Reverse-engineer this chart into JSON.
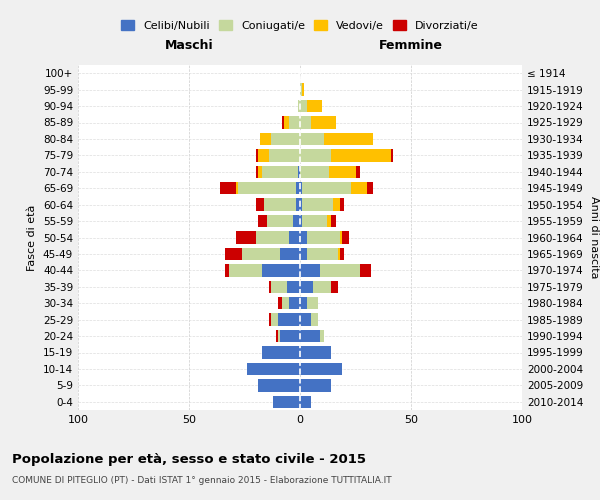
{
  "age_groups": [
    "0-4",
    "5-9",
    "10-14",
    "15-19",
    "20-24",
    "25-29",
    "30-34",
    "35-39",
    "40-44",
    "45-49",
    "50-54",
    "55-59",
    "60-64",
    "65-69",
    "70-74",
    "75-79",
    "80-84",
    "85-89",
    "90-94",
    "95-99",
    "100+"
  ],
  "birth_years": [
    "2010-2014",
    "2005-2009",
    "2000-2004",
    "1995-1999",
    "1990-1994",
    "1985-1989",
    "1980-1984",
    "1975-1979",
    "1970-1974",
    "1965-1969",
    "1960-1964",
    "1955-1959",
    "1950-1954",
    "1945-1949",
    "1940-1944",
    "1935-1939",
    "1930-1934",
    "1925-1929",
    "1920-1924",
    "1915-1919",
    "≤ 1914"
  ],
  "male": {
    "celibi": [
      12,
      19,
      24,
      17,
      9,
      10,
      5,
      6,
      17,
      9,
      5,
      3,
      2,
      2,
      1,
      0,
      0,
      0,
      0,
      0,
      0
    ],
    "coniugati": [
      0,
      0,
      0,
      0,
      1,
      3,
      3,
      7,
      15,
      17,
      15,
      12,
      14,
      26,
      16,
      14,
      13,
      5,
      1,
      0,
      0
    ],
    "vedovi": [
      0,
      0,
      0,
      0,
      0,
      0,
      0,
      0,
      0,
      0,
      0,
      0,
      0,
      1,
      2,
      5,
      5,
      2,
      0,
      0,
      0
    ],
    "divorziati": [
      0,
      0,
      0,
      0,
      1,
      1,
      2,
      1,
      2,
      8,
      9,
      4,
      4,
      7,
      1,
      1,
      0,
      1,
      0,
      0,
      0
    ]
  },
  "female": {
    "nubili": [
      5,
      14,
      19,
      14,
      9,
      5,
      3,
      6,
      9,
      3,
      3,
      1,
      1,
      1,
      0,
      0,
      0,
      0,
      0,
      0,
      0
    ],
    "coniugate": [
      0,
      0,
      0,
      0,
      2,
      3,
      5,
      8,
      18,
      14,
      15,
      11,
      14,
      22,
      13,
      14,
      11,
      5,
      3,
      1,
      0
    ],
    "vedove": [
      0,
      0,
      0,
      0,
      0,
      0,
      0,
      0,
      0,
      1,
      1,
      2,
      3,
      7,
      12,
      27,
      22,
      11,
      7,
      1,
      0
    ],
    "divorziate": [
      0,
      0,
      0,
      0,
      0,
      0,
      0,
      3,
      5,
      2,
      3,
      2,
      2,
      3,
      2,
      1,
      0,
      0,
      0,
      0,
      0
    ]
  },
  "colors": {
    "celibi": "#4472c4",
    "coniugati": "#c5d89d",
    "vedovi": "#ffc000",
    "divorziati": "#cc0000"
  },
  "title": "Popolazione per età, sesso e stato civile - 2015",
  "subtitle": "COMUNE DI PITEGLIO (PT) - Dati ISTAT 1° gennaio 2015 - Elaborazione TUTTITALIA.IT",
  "xlabel_left": "Maschi",
  "xlabel_right": "Femmine",
  "ylabel_left": "Fasce di età",
  "ylabel_right": "Anni di nascita",
  "xlim": 100,
  "legend_labels": [
    "Celibi/Nubili",
    "Coniugati/e",
    "Vedovi/e",
    "Divorziati/e"
  ],
  "background_color": "#f0f0f0",
  "plot_bg_color": "#ffffff"
}
